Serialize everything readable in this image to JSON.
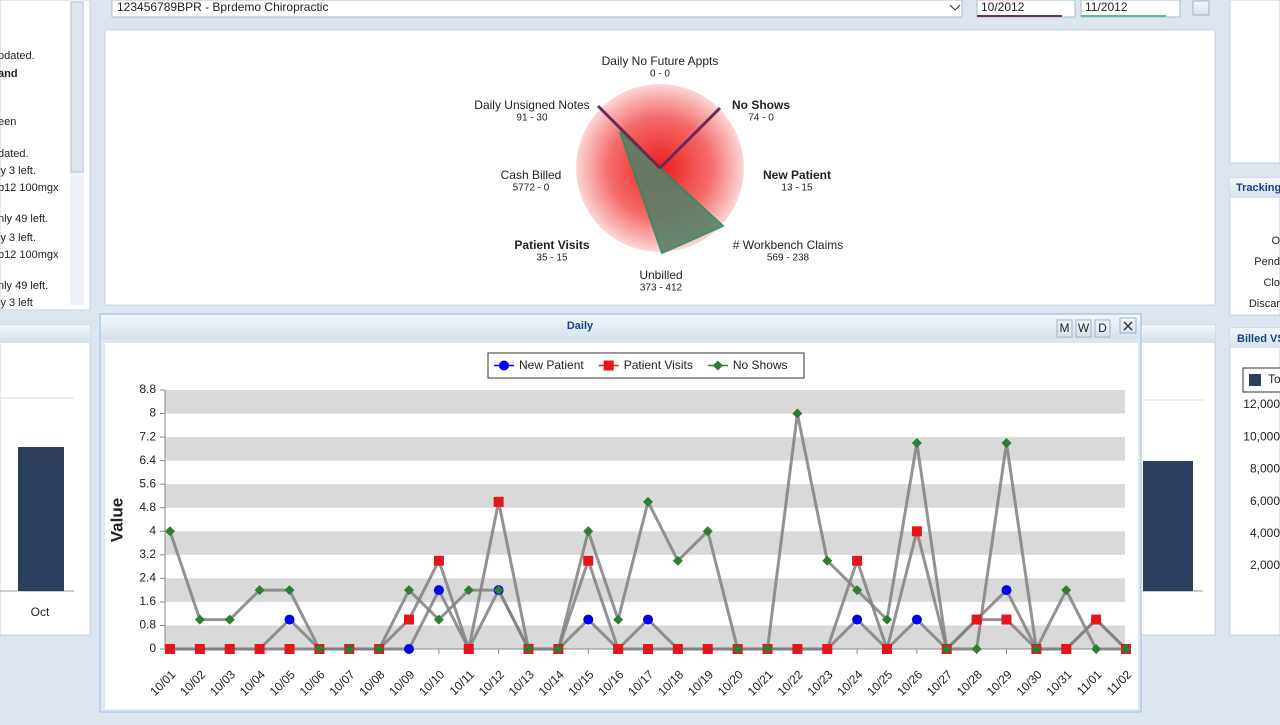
{
  "header": {
    "practice": "123456789BPR - Bprdemo Chiropractic",
    "date_from": "10/2012",
    "date_to": "11/2012"
  },
  "left_panel": {
    "lines": [
      {
        "text": "pdated."
      },
      {
        "text": "and",
        "bold": true
      },
      {
        "text": "een"
      },
      {
        "text": "dated."
      },
      {
        "text": "ly 3 left."
      },
      {
        "text": "b12 100mgx"
      },
      {
        "text": "nly 49 left."
      },
      {
        "text": "ly 3 left."
      },
      {
        "text": "b12 100mgx"
      },
      {
        "text": "nly 49 left."
      },
      {
        "text": "ly 3 left"
      }
    ]
  },
  "radar": {
    "axes": [
      {
        "label": "Daily No Future Appts",
        "value": "0 - 0"
      },
      {
        "label": "No Shows",
        "value": "74 - 0",
        "bold": true
      },
      {
        "label": "New Patient",
        "value": "13 - 15",
        "bold": true
      },
      {
        "label": "# Workbench Claims",
        "value": "569 - 238"
      },
      {
        "label": "Unbilled",
        "value": "373 - 412"
      },
      {
        "label": "Patient Visits",
        "value": "35 - 15",
        "bold": true
      },
      {
        "label": "Cash Billed",
        "value": "5772 - 0"
      },
      {
        "label": "Daily Unsigned Notes",
        "value": "91 - 30"
      }
    ]
  },
  "left_chart": {
    "categories": [
      "Oct"
    ]
  },
  "right_panel": {
    "tracking_title": "Tracking",
    "tracking_rows": [
      "O",
      "Pend",
      "Clo",
      "Discar"
    ],
    "billed_title": "Billed VS",
    "legend": "To",
    "tick_labels": [
      "12,000",
      "10,000",
      "8,000",
      "6,000",
      "4,000",
      "2,000"
    ]
  },
  "window": {
    "title": "Daily",
    "buttons": [
      "M",
      "W",
      "D"
    ]
  },
  "chart_data": {
    "type": "line",
    "y_label": "Value",
    "x": [
      "10/01",
      "10/02",
      "10/03",
      "10/04",
      "10/05",
      "10/06",
      "10/07",
      "10/08",
      "10/09",
      "10/10",
      "10/11",
      "10/12",
      "10/13",
      "10/14",
      "10/15",
      "10/16",
      "10/17",
      "10/18",
      "10/19",
      "10/20",
      "10/21",
      "10/22",
      "10/23",
      "10/24",
      "10/25",
      "10/26",
      "10/27",
      "10/28",
      "10/29",
      "10/30",
      "10/31",
      "11/01",
      "11/02"
    ],
    "series": [
      {
        "name": "New Patient",
        "color": "#0000ee",
        "marker": "circle",
        "values": [
          0,
          0,
          0,
          0,
          1,
          0,
          0,
          0,
          0,
          2,
          0,
          2,
          0,
          0,
          1,
          0,
          1,
          0,
          0,
          0,
          0,
          0,
          0,
          1,
          0,
          1,
          0,
          1,
          2,
          0,
          0,
          1,
          0
        ]
      },
      {
        "name": "Patient Visits",
        "color": "#e8141c",
        "marker": "square",
        "values": [
          0,
          0,
          0,
          0,
          0,
          0,
          0,
          0,
          1,
          3,
          0,
          5,
          0,
          0,
          3,
          0,
          0,
          0,
          0,
          0,
          0,
          0,
          0,
          3,
          0,
          4,
          0,
          1,
          1,
          0,
          0,
          1,
          0
        ]
      },
      {
        "name": "No Shows",
        "color": "#2e7d32",
        "marker": "diamond",
        "values": [
          4,
          1,
          1,
          2,
          2,
          0,
          0,
          0,
          2,
          1,
          2,
          2,
          0,
          0,
          4,
          1,
          5,
          3,
          4,
          0,
          0,
          8,
          3,
          2,
          1,
          7,
          0,
          0,
          7,
          0,
          2,
          0,
          0
        ]
      }
    ],
    "line_color": "#808080",
    "ylim": [
      0,
      8.8
    ],
    "yticks": [
      0,
      0.8,
      1.6,
      2.4,
      3.2,
      4,
      4.8,
      5.6,
      6.4,
      7.2,
      8,
      8.8
    ],
    "bands": true,
    "legend": "top"
  }
}
